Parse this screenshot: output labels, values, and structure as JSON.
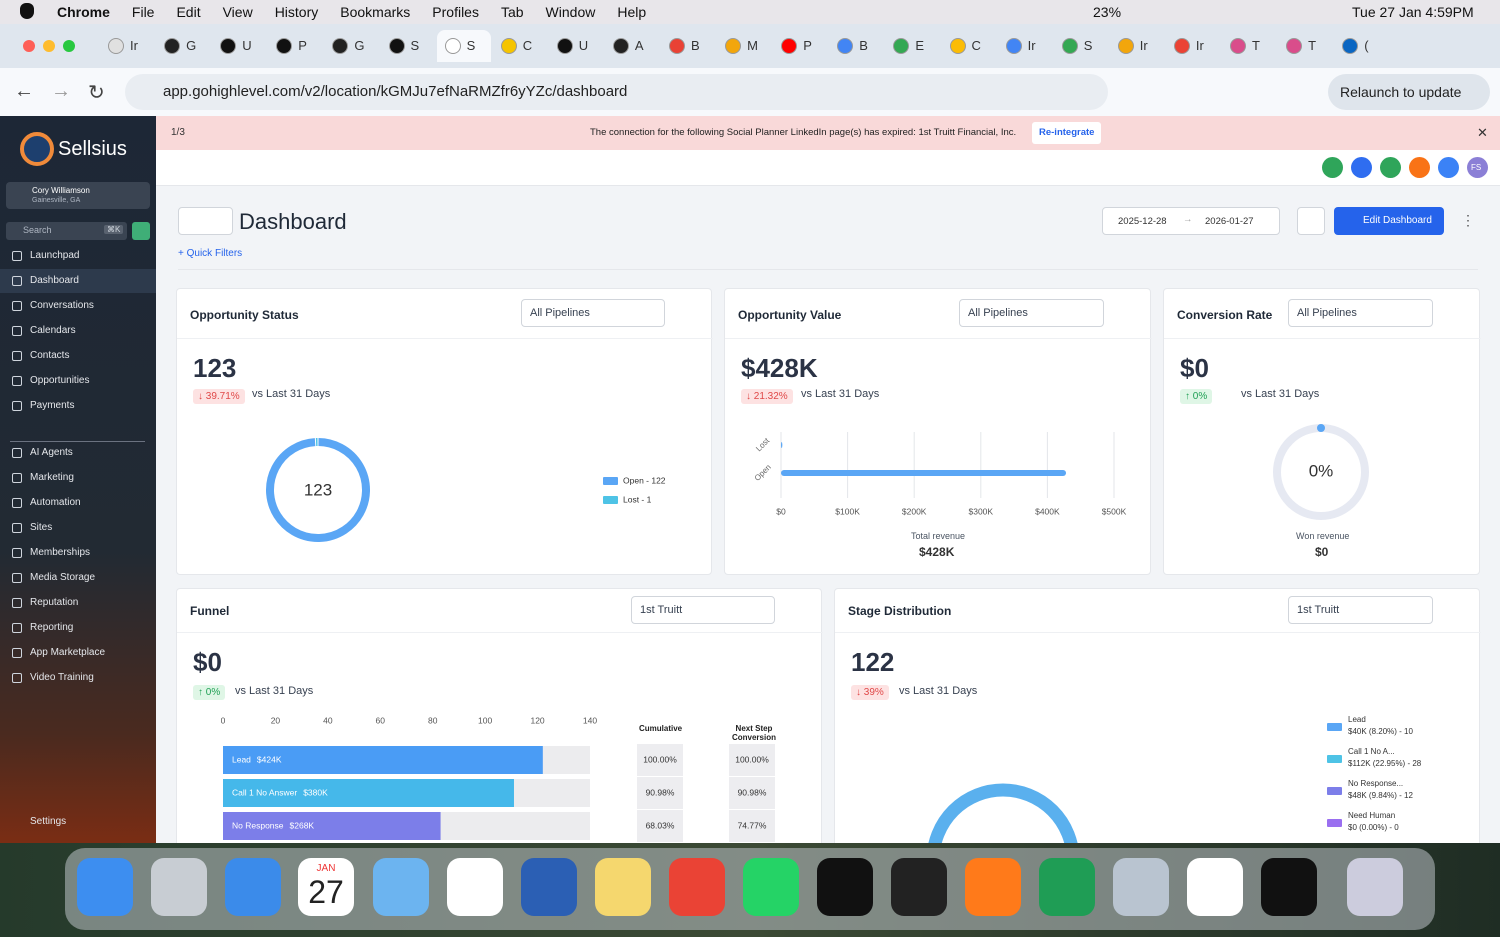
{
  "menubar": {
    "app": "Chrome",
    "menus": [
      "File",
      "Edit",
      "View",
      "History",
      "Bookmarks",
      "Profiles",
      "Tab",
      "Window",
      "Help"
    ],
    "battery": "23%",
    "datetime": "Tue 27 Jan  4:59PM"
  },
  "browser": {
    "tabs": [
      "Ir",
      "G",
      "U",
      "P",
      "G",
      "S",
      "S",
      "C",
      "U",
      "A",
      "B",
      "M",
      "P",
      "B",
      "E",
      "C",
      "Ir",
      "S",
      "Ir",
      "Ir",
      "T",
      "T",
      "("
    ],
    "url": "app.gohighlevel.com/v2/location/kGMJu7efNaRMZfr6yYZc/dashboard",
    "relaunch": "Relaunch to update"
  },
  "banner": {
    "pager": "1/3",
    "message": "The connection for the following Social Planner LinkedIn page(s) has expired: 1st Truitt Financial, Inc.",
    "button": "Re-integrate"
  },
  "top_avatar": "FS",
  "sidebar": {
    "brand": "Sellsius",
    "user_name": "Cory Williamson",
    "user_location": "Gainesville, GA",
    "search": "Search",
    "shortcut": "⌘K",
    "nav_main": [
      "Launchpad",
      "Dashboard",
      "Conversations",
      "Calendars",
      "Contacts",
      "Opportunities",
      "Payments"
    ],
    "nav_more": [
      "AI Agents",
      "Marketing",
      "Automation",
      "Sites",
      "Memberships",
      "Media Storage",
      "Reputation",
      "Reporting",
      "App Marketplace",
      "Video Training"
    ],
    "settings": "Settings"
  },
  "header": {
    "title": "Dashboard",
    "quick_filters": "+  Quick Filters",
    "date_start": "2025-12-28",
    "date_end": "2026-01-27",
    "edit": "Edit Dashboard"
  },
  "opportunity_status": {
    "title": "Opportunity Status",
    "filter": "All Pipelines",
    "total": "123",
    "change": "↓ 39.71%",
    "vs": "vs Last 31 Days",
    "center": "123",
    "chart": {
      "type": "pie",
      "categories": [
        "Open - 122",
        "Lost - 1"
      ],
      "values": [
        122,
        1
      ],
      "colors": [
        "#5aa6f5",
        "#4ec3e6"
      ]
    }
  },
  "opportunity_value": {
    "title": "Opportunity Value",
    "filter": "All Pipelines",
    "total": "$428K",
    "change": "↓ 21.32%",
    "vs": "vs Last 31 Days",
    "footer_label": "Total revenue",
    "footer_value": "$428K",
    "chart": {
      "type": "bar",
      "categories": [
        "Lost",
        "Open"
      ],
      "values": [
        2000,
        428000
      ],
      "color": "#5aa6f5",
      "xlim": [
        0,
        500000
      ],
      "xticks": [
        {
          "value": 0,
          "label": "$0"
        },
        {
          "value": 100000,
          "label": "$100K"
        },
        {
          "value": 200000,
          "label": "$200K"
        },
        {
          "value": 300000,
          "label": "$300K"
        },
        {
          "value": 400000,
          "label": "$400K"
        },
        {
          "value": 500000,
          "label": "$500K"
        }
      ],
      "grid": true
    }
  },
  "conversion_rate": {
    "title": "Conversion Rate",
    "filter": "All Pipelines",
    "total": "$0",
    "change": "↑ 0%",
    "vs": "vs Last 31 Days",
    "footer_label": "Won revenue",
    "footer_value": "$0",
    "chart": {
      "type": "pie",
      "values": [
        0
      ],
      "value_labels": [
        "0%"
      ],
      "color": "#5aa6f5"
    }
  },
  "funnel": {
    "title": "Funnel",
    "filter": "1st Truitt",
    "total": "$0",
    "change": "↑ 0%",
    "vs": "vs Last 31 Days",
    "col_cumulative": "Cumulative",
    "col_next": "Next Step Conversion",
    "chart": {
      "type": "bar",
      "categories": [
        "Lead",
        "Call 1 No Answer",
        "No Response"
      ],
      "amounts": [
        "$424K",
        "$380K",
        "$268K"
      ],
      "values": [
        122,
        111,
        83
      ],
      "colors": [
        "#4a9cf5",
        "#45b8ea",
        "#7c7ee9"
      ],
      "xlim": [
        0,
        140
      ],
      "xticks": [
        0,
        20,
        40,
        60,
        80,
        100,
        120,
        140
      ]
    },
    "cumulative": [
      "100.00%",
      "90.98%",
      "68.03%"
    ],
    "next_step": [
      "100.00%",
      "90.98%",
      "74.77%"
    ]
  },
  "stage_distribution": {
    "title": "Stage Distribution",
    "filter": "1st Truitt",
    "total": "122",
    "change": "↓ 39%",
    "vs": "vs Last 31 Days",
    "legend": [
      {
        "name": "Lead",
        "detail": "$40K (8.20%) - 10",
        "color": "#5aa6f5"
      },
      {
        "name": "Call 1 No A...",
        "detail": "$112K (22.95%) - 28",
        "color": "#4ec3e6"
      },
      {
        "name": "No Response...",
        "detail": "$48K (9.84%) - 12",
        "color": "#7c7ee9"
      },
      {
        "name": "Need Human",
        "detail": "$0 (0.00%) - 0",
        "color": "#9a6ff0"
      }
    ]
  },
  "dock": {
    "cal_month": "JAN",
    "cal_day": "27"
  }
}
